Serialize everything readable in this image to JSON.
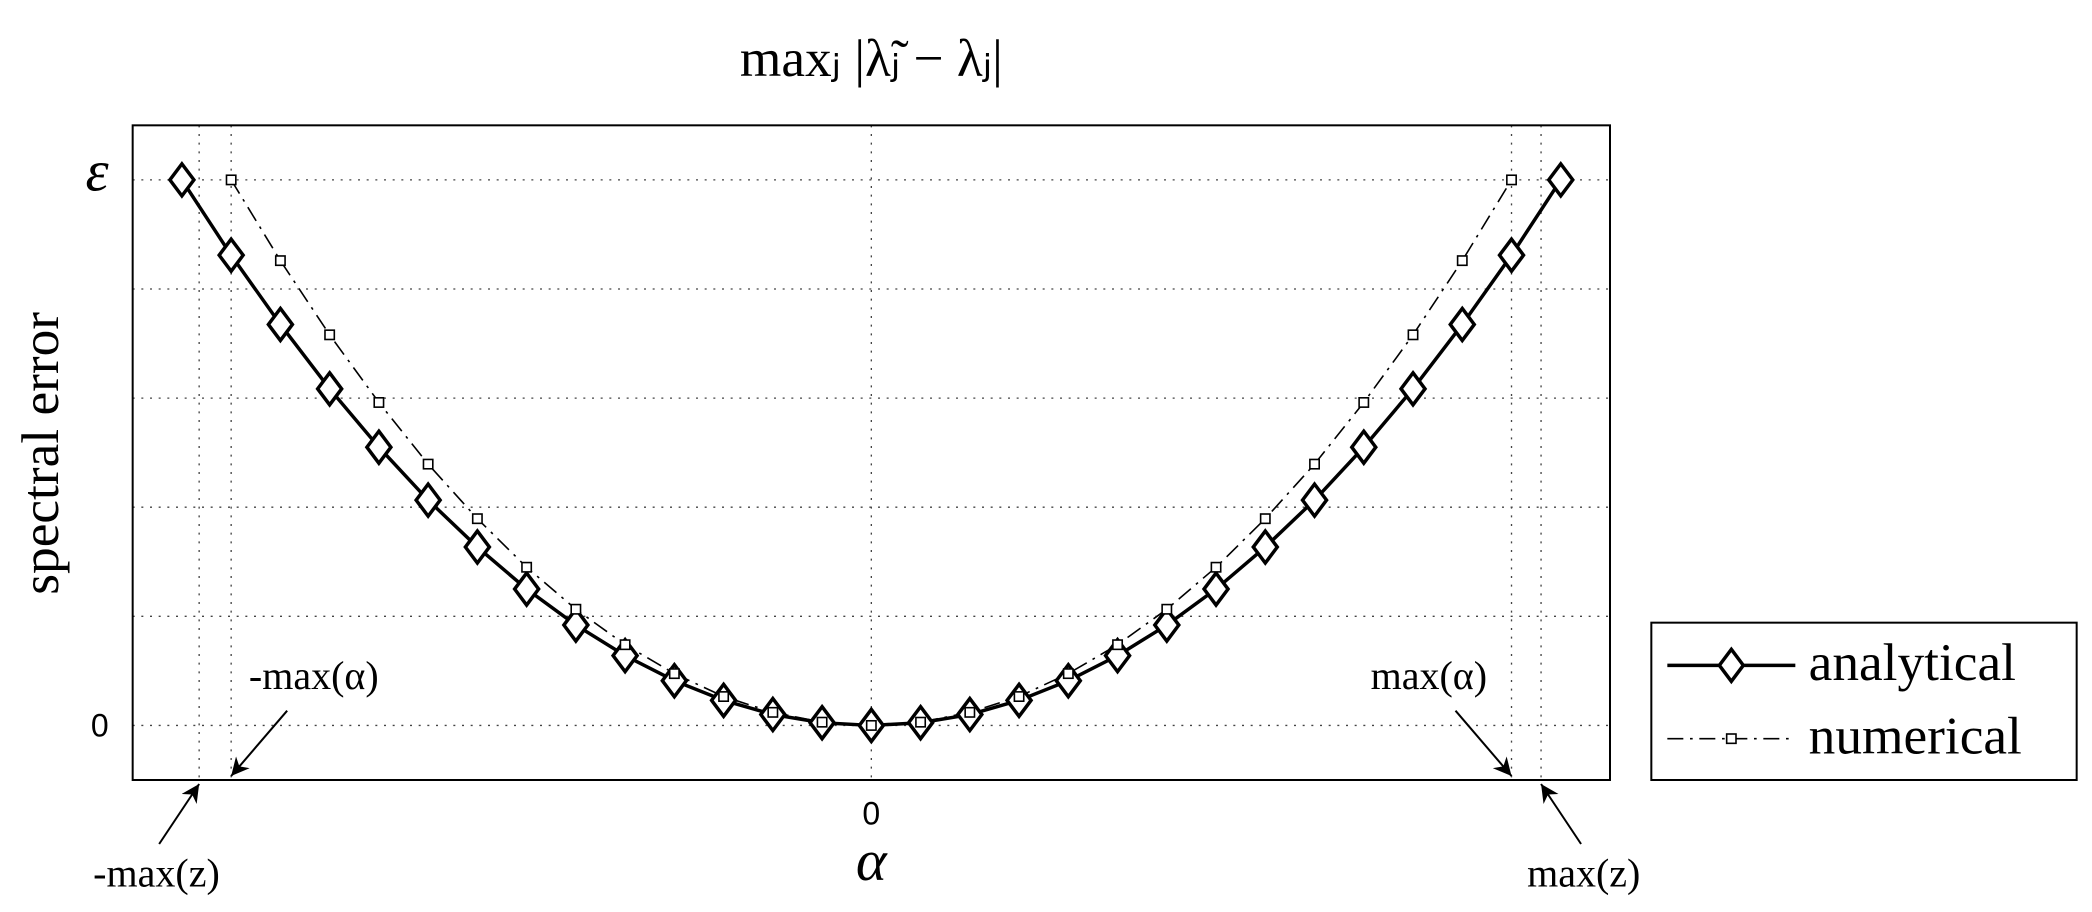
{
  "chart_data": {
    "type": "line",
    "title": "maxⱼ |λ̃ⱼ − λⱼ|",
    "x_label": "α",
    "y_label": "spectral error",
    "xlim": [
      -15,
      15
    ],
    "ylim": [
      -0.1,
      1.1
    ],
    "xticks": [
      0
    ],
    "yticks": [
      0,
      {
        "value": 1,
        "label": "ε"
      }
    ],
    "grid_yticks": [
      0.2,
      0.4,
      0.6,
      0.8
    ],
    "grid": true,
    "legend": "outside-lower-right",
    "series": [
      {
        "name": "analytical",
        "color": "#000000",
        "marker": "diamond",
        "x": [
          -14,
          -13,
          -12,
          -11,
          -10,
          -9,
          -8,
          -7,
          -6,
          -5,
          -4,
          -3,
          -2,
          -1,
          0,
          1,
          2,
          3,
          4,
          5,
          6,
          7,
          8,
          9,
          10,
          11,
          12,
          13,
          14
        ],
        "values": [
          1,
          0.862,
          0.735,
          0.617,
          0.51,
          0.413,
          0.327,
          0.25,
          0.184,
          0.128,
          0.082,
          0.046,
          0.02,
          0.005,
          0,
          0.005,
          0.02,
          0.046,
          0.082,
          0.128,
          0.184,
          0.25,
          0.327,
          0.413,
          0.51,
          0.617,
          0.735,
          0.862,
          1
        ]
      },
      {
        "name": "numerical",
        "color": "#000000",
        "marker": "square",
        "x": [
          -13,
          -12,
          -11,
          -10,
          -9,
          -8,
          -7,
          -6,
          -5,
          -4,
          -3,
          -2,
          -1,
          0,
          1,
          2,
          3,
          4,
          5,
          6,
          7,
          8,
          9,
          10,
          11,
          12,
          13
        ],
        "values": [
          1,
          0.852,
          0.716,
          0.592,
          0.479,
          0.379,
          0.29,
          0.213,
          0.148,
          0.095,
          0.053,
          0.024,
          0.006,
          0,
          0.006,
          0.024,
          0.053,
          0.095,
          0.148,
          0.213,
          0.29,
          0.379,
          0.479,
          0.592,
          0.716,
          0.852,
          1
        ]
      }
    ],
    "annotations": [
      {
        "text": "-max(z)",
        "x": -13.65,
        "side": "left",
        "row": "low"
      },
      {
        "text": "-max(α)",
        "x": -13,
        "side": "right",
        "row": "high"
      },
      {
        "text": "max(α)",
        "x": 13,
        "side": "left",
        "row": "high"
      },
      {
        "text": "max(z)",
        "x": 13.6,
        "side": "right",
        "row": "low"
      }
    ]
  }
}
